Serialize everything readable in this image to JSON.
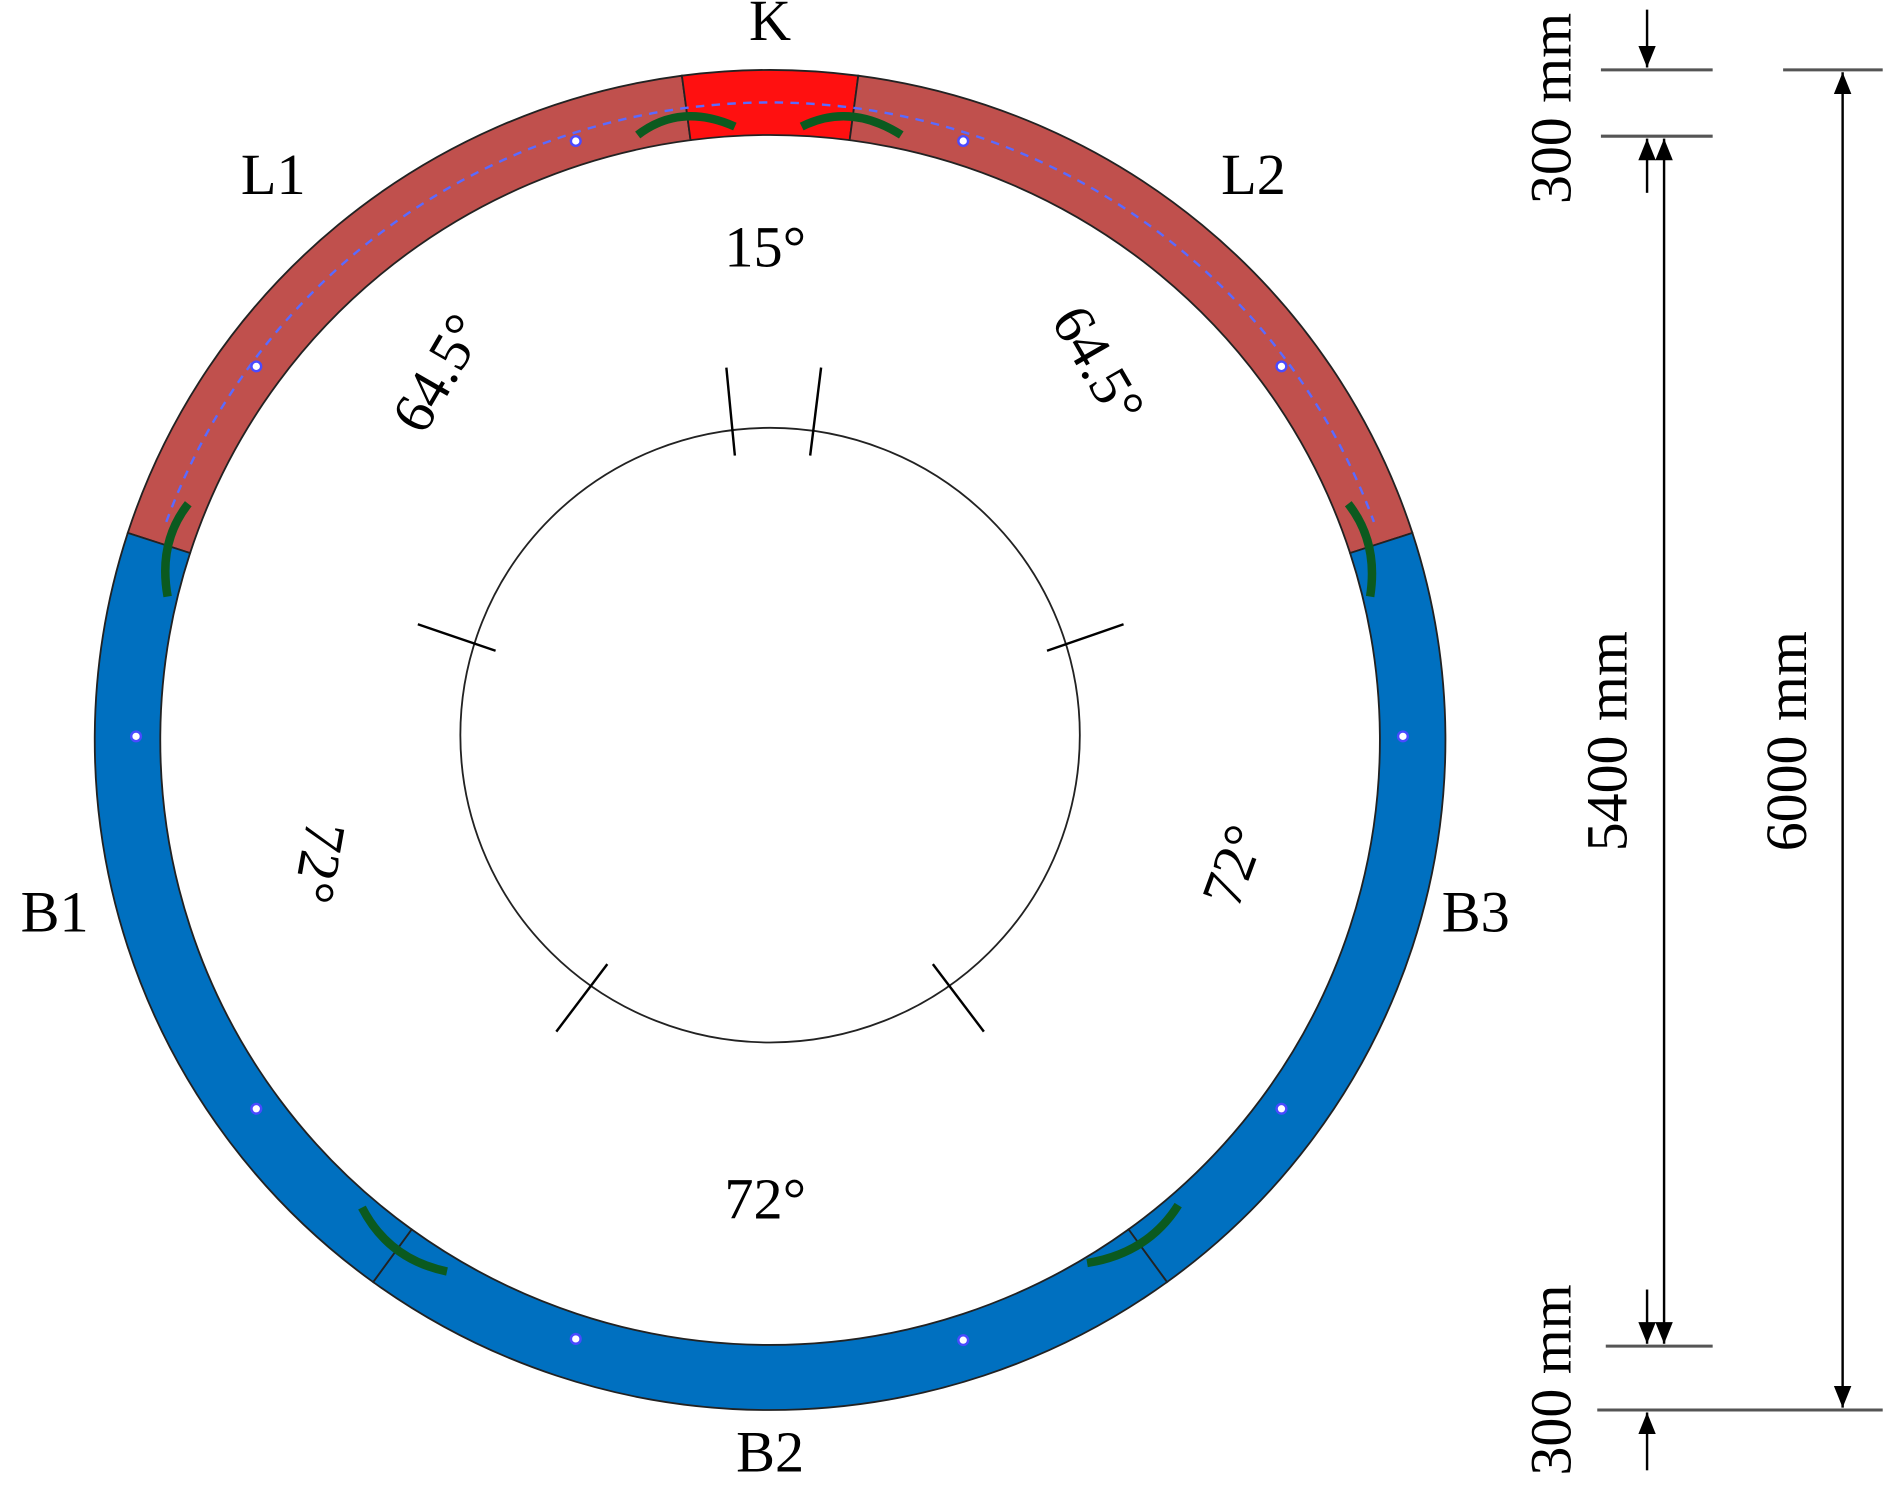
{
  "segments": [
    "K",
    "L1",
    "L2",
    "B1",
    "B2",
    "B3"
  ],
  "angles": {
    "key": "15°",
    "left_adjacent": "64.5°",
    "right_adjacent": "64.5°",
    "left_standard": "72°",
    "bottom_standard": "72°",
    "right_standard": "72°"
  },
  "dimensions": {
    "top_thickness": "300 mm",
    "inner_diameter": "5400 mm",
    "outer_diameter": "6000 mm",
    "bottom_thickness": "300 mm"
  }
}
